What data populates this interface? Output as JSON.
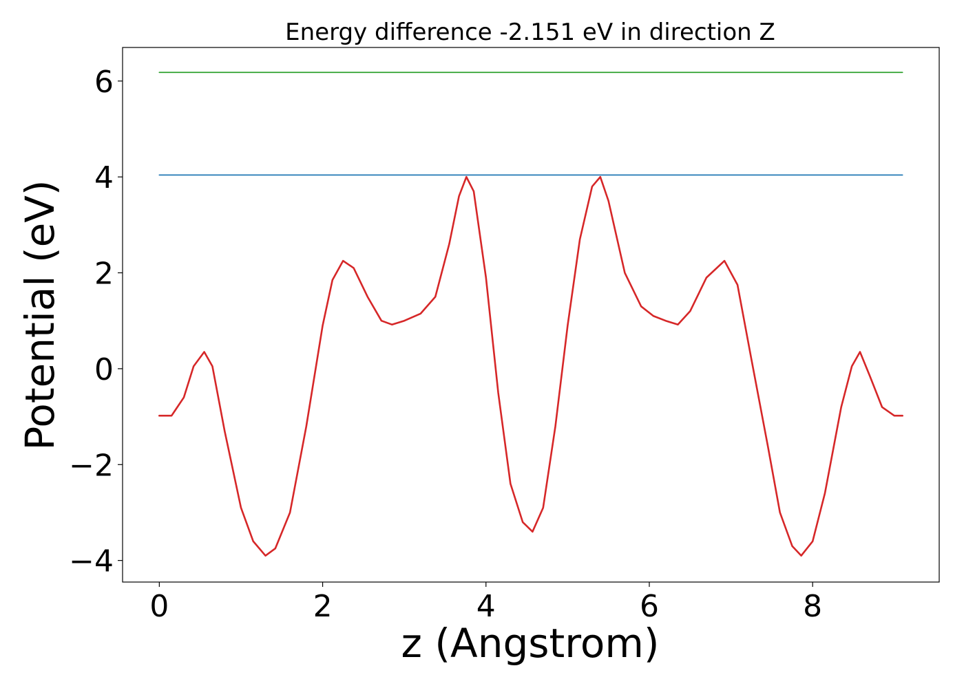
{
  "chart_data": {
    "type": "line",
    "title": "Energy difference -2.151 eV in direction Z",
    "xlabel": "z (Angstrom)",
    "ylabel": "Potential (eV)",
    "xlim": [
      -0.45,
      9.55
    ],
    "ylim": [
      -4.45,
      6.7
    ],
    "xticks": [
      0,
      2,
      4,
      6,
      8
    ],
    "xtick_labels": [
      "0",
      "2",
      "4",
      "6",
      "8"
    ],
    "yticks": [
      -4,
      -2,
      0,
      2,
      4,
      6
    ],
    "ytick_labels": [
      "−4",
      "−2",
      "0",
      "2",
      "4",
      "6"
    ],
    "grid": false,
    "series": [
      {
        "color": "#d62728",
        "x": [
          0.0,
          0.15,
          0.3,
          0.42,
          0.55,
          0.65,
          0.8,
          1.0,
          1.15,
          1.3,
          1.42,
          1.6,
          1.8,
          2.0,
          2.12,
          2.25,
          2.38,
          2.55,
          2.72,
          2.85,
          3.0,
          3.2,
          3.38,
          3.55,
          3.67,
          3.76,
          3.85,
          4.0,
          4.15,
          4.3,
          4.45,
          4.57,
          4.7,
          4.85,
          5.0,
          5.15,
          5.3,
          5.4,
          5.5,
          5.7,
          5.9,
          6.05,
          6.2,
          6.35,
          6.5,
          6.7,
          6.92,
          7.08,
          7.25,
          7.45,
          7.6,
          7.75,
          7.86,
          8.0,
          8.15,
          8.35,
          8.48,
          8.58,
          8.7,
          8.85,
          9.0,
          9.1
        ],
        "y": [
          -0.98,
          -0.98,
          -0.6,
          0.05,
          0.35,
          0.05,
          -1.3,
          -2.9,
          -3.6,
          -3.9,
          -3.75,
          -3.0,
          -1.2,
          0.9,
          1.85,
          2.25,
          2.1,
          1.5,
          1.0,
          0.92,
          1.0,
          1.15,
          1.5,
          2.6,
          3.6,
          4.0,
          3.7,
          1.9,
          -0.5,
          -2.4,
          -3.2,
          -3.4,
          -2.9,
          -1.2,
          0.9,
          2.7,
          3.8,
          4.0,
          3.5,
          2.0,
          1.3,
          1.1,
          1.0,
          0.92,
          1.2,
          1.9,
          2.25,
          1.75,
          0.2,
          -1.6,
          -3.0,
          -3.7,
          -3.9,
          -3.6,
          -2.6,
          -0.8,
          0.05,
          0.35,
          -0.15,
          -0.8,
          -0.98,
          -0.98
        ]
      },
      {
        "color": "#1f77b4",
        "x": [
          0.0,
          9.1
        ],
        "y": [
          4.04,
          4.04
        ]
      },
      {
        "color": "#2ca02c",
        "x": [
          0.0,
          9.1
        ],
        "y": [
          6.18,
          6.18
        ]
      }
    ]
  }
}
